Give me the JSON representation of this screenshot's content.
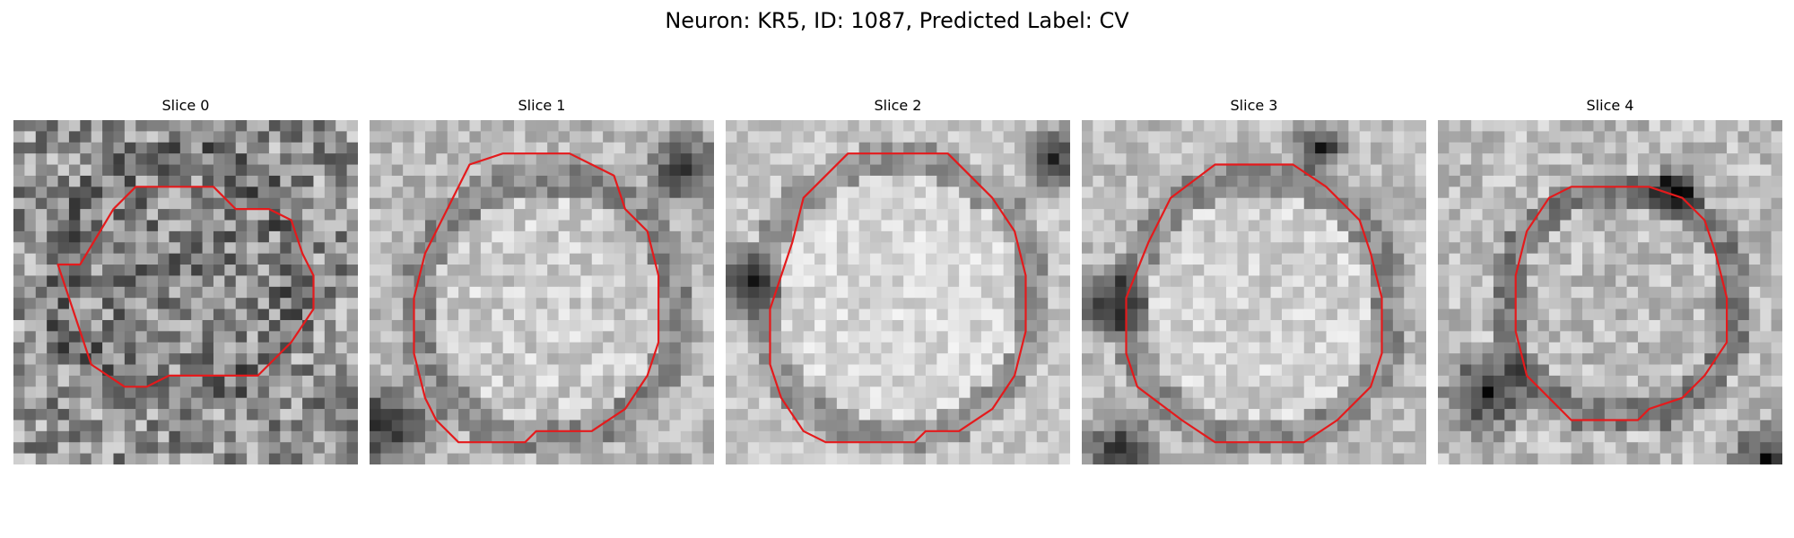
{
  "figure": {
    "title": "Neuron: KR5, ID: 1087, Predicted Label: CV"
  },
  "panels": [
    {
      "title": "Slice 0"
    },
    {
      "title": "Slice 1"
    },
    {
      "title": "Slice 2"
    },
    {
      "title": "Slice 3"
    },
    {
      "title": "Slice 4"
    }
  ],
  "colors": {
    "contour": "#e41a1c",
    "colormap": "grayscale"
  }
}
